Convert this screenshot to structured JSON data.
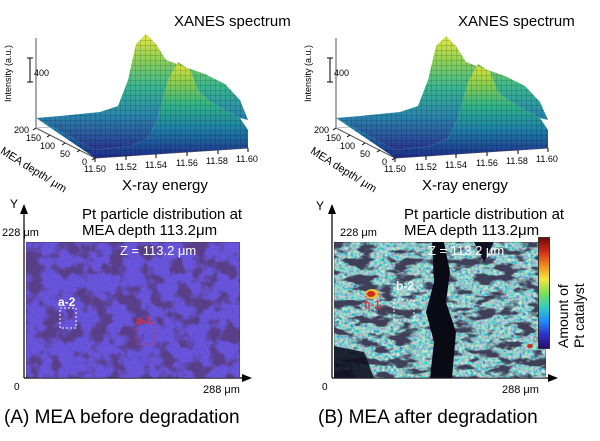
{
  "panels": [
    {
      "id": "A",
      "spectrum_title": "XANES spectrum",
      "intensity_axis_label": "Intensity (a.u.)",
      "intensity_scale": "400",
      "depth_axis_label": "MEA depth/ μm",
      "depth_ticks": [
        "200",
        "150",
        "100",
        "50",
        "0"
      ],
      "energy_ticks": [
        "11.50",
        "11.52",
        "11.54",
        "11.56",
        "11.58",
        "11.60"
      ],
      "energy_axis_label": "X-ray energy",
      "map_title_line1": "Pt particle distribution at",
      "map_title_line2": "MEA depth 113.2μm",
      "y_axis_letter": "Y",
      "x_axis_letter": "X",
      "y_max": "228 μm",
      "x_max": "288 μm",
      "origin": "0",
      "z_label": "Z = 113.2 μm",
      "region_white": "a-2",
      "region_red": "a-1",
      "caption": "(A) MEA before degradation"
    },
    {
      "id": "B",
      "spectrum_title": "XANES spectrum",
      "intensity_axis_label": "Intensity (a.u.)",
      "intensity_scale": "400",
      "depth_axis_label": "MEA depth/ μm",
      "depth_ticks": [
        "200",
        "150",
        "100",
        "50",
        "0"
      ],
      "energy_ticks": [
        "11.50",
        "11.52",
        "11.54",
        "11.56",
        "11.58",
        "11.60"
      ],
      "energy_axis_label": "X-ray energy",
      "map_title_line1": "Pt particle distribution at",
      "map_title_line2": "MEA depth 113.2μm",
      "y_axis_letter": "Y",
      "x_axis_letter": "X",
      "y_max": "228 μm",
      "x_max": "288 μm",
      "origin": "0",
      "z_label": "Z = 113.2 μm",
      "region_white": "b-2",
      "region_red": "b-1",
      "caption": "(B) MEA after degradation"
    }
  ],
  "colorbar": {
    "label_line1": "Amount of",
    "label_line2": "Pt catalyst",
    "colors": [
      "#2a0a6e",
      "#3030d0",
      "#1e90ff",
      "#2fd0c0",
      "#7ee05a",
      "#f2e63a",
      "#f08a1e",
      "#d42a12",
      "#6e0a0a"
    ]
  }
}
